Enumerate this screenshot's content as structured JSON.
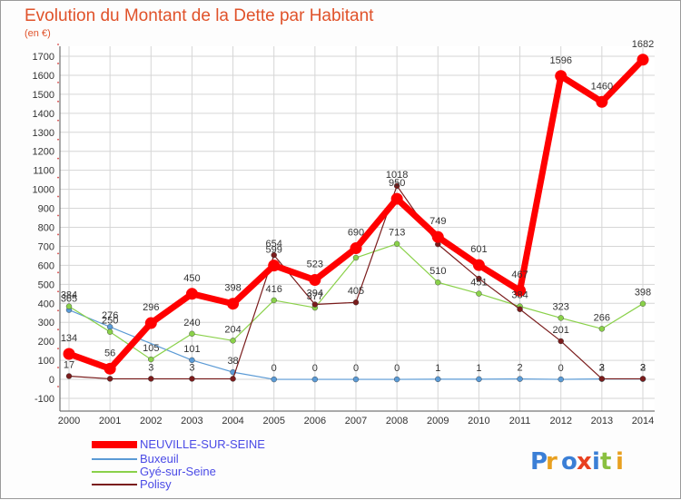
{
  "chart_data": {
    "type": "line",
    "title": "Evolution du Montant de la Dette par Habitant",
    "subtitle": "(en €)",
    "xlabel": "",
    "ylabel": "",
    "ylim": [
      -100,
      1700
    ],
    "ytick_step": 100,
    "grid": true,
    "categories": [
      "2000",
      "2001",
      "2002",
      "2003",
      "2004",
      "2005",
      "2006",
      "2007",
      "2008",
      "2009",
      "2010",
      "2011",
      "2012",
      "2013",
      "2014"
    ],
    "legend_position": "bottom-left",
    "series": [
      {
        "name": "NEUVILLE-SUR-SEINE",
        "color": "#ff0000",
        "values": [
          134,
          56,
          296,
          450,
          398,
          599,
          523,
          690,
          950,
          749,
          601,
          467,
          1596,
          1460,
          1682
        ],
        "labels": [
          "134",
          "56",
          "296",
          "450",
          "398",
          "599",
          "523",
          "690",
          "950",
          "749",
          "601",
          "467",
          "1596",
          "1460",
          "1682"
        ]
      },
      {
        "name": "Buxeuil",
        "color": "#5a9ad5",
        "values": [
          365,
          276,
          null,
          101,
          38,
          0,
          0,
          0,
          0,
          1,
          1,
          2,
          0,
          2,
          2
        ],
        "labels": [
          "365",
          "276",
          "",
          "101",
          "38",
          "0",
          "0",
          "0",
          "0",
          "1",
          "1",
          "2",
          "0",
          "2",
          "2"
        ]
      },
      {
        "name": "Gyé-sur-Seine",
        "color": "#8ad14a",
        "values": [
          384,
          250,
          105,
          240,
          204,
          416,
          377,
          640,
          713,
          510,
          451,
          384,
          323,
          266,
          398
        ],
        "labels": [
          "384",
          "250",
          "105",
          "240",
          "204",
          "416",
          "377",
          "",
          "713",
          "510",
          "451",
          "384",
          "323",
          "266",
          "398"
        ]
      },
      {
        "name": "Polisy",
        "color": "#7a1c1c",
        "values": [
          17,
          3,
          3,
          3,
          3,
          654,
          394,
          405,
          1018,
          711,
          530,
          369,
          201,
          3,
          3
        ],
        "labels": [
          "17",
          "",
          "3",
          "3",
          "",
          "654",
          "394",
          "405",
          "1018",
          "",
          "",
          "",
          "201",
          "3",
          "3"
        ]
      }
    ]
  },
  "logo": {
    "text": "Proxiti"
  }
}
